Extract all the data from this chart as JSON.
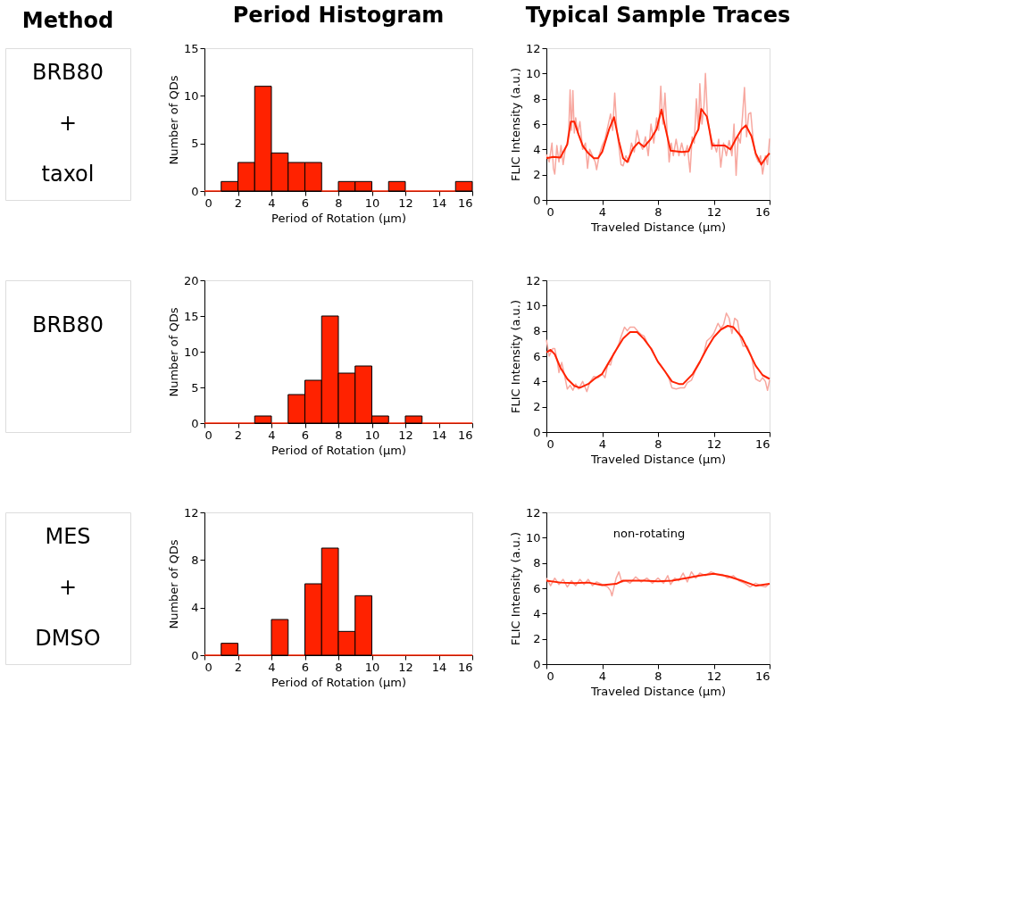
{
  "chart_data": [
    {
      "type": "other",
      "title": "Method",
      "annotations": [
        "BRB80",
        "+",
        "taxol"
      ]
    },
    {
      "type": "histogram",
      "title": "Period Histogram",
      "xlabel": "Period of Rotation (μm)",
      "ylabel": "Number of QDs",
      "bins": [
        0,
        1,
        2,
        3,
        4,
        5,
        6,
        7,
        8,
        9,
        10,
        11,
        12,
        13,
        14,
        15,
        16
      ],
      "values": [
        0,
        1,
        3,
        11,
        4,
        3,
        3,
        0,
        1,
        1,
        0,
        1,
        0,
        0,
        0,
        1
      ],
      "color": "#ff2200",
      "xlim": [
        0,
        16
      ],
      "xticks": [
        0,
        2,
        4,
        6,
        8,
        10,
        12,
        14,
        16
      ],
      "ylim": [
        0,
        15
      ],
      "yticks": [
        0,
        5,
        10,
        15
      ],
      "grid": false
    },
    {
      "type": "line",
      "title": "Typical Sample Traces",
      "xlabel": "Traveled Distance (μm)",
      "ylabel": "FLIC Intensity (a.u.)",
      "xlim": [
        0,
        16
      ],
      "xticks": [
        0,
        4,
        8,
        12,
        16
      ],
      "ylim": [
        0,
        12
      ],
      "yticks": [
        0,
        2,
        4,
        6,
        8,
        10,
        12
      ],
      "grid": false,
      "series": [
        {
          "color": "#f7a8a0",
          "x": [
            0,
            0.2,
            0.4,
            0.5,
            0.6,
            0.75,
            0.9,
            1.05,
            1.2,
            1.35,
            1.5,
            1.6,
            1.7,
            1.8,
            1.9,
            2.0,
            2.1,
            2.25,
            2.4,
            2.6,
            2.8,
            2.95,
            3.1,
            3.3,
            3.5,
            3.6,
            3.8,
            4.0,
            4.2,
            4.4,
            4.6,
            4.75,
            4.9,
            5.05,
            5.2,
            5.35,
            5.5,
            5.7,
            5.9,
            6.1,
            6.3,
            6.5,
            6.7,
            6.9,
            7.1,
            7.3,
            7.5,
            7.7,
            7.9,
            8.05,
            8.2,
            8.35,
            8.5,
            8.65,
            8.8,
            8.95,
            9.1,
            9.3,
            9.5,
            9.7,
            9.9,
            10.1,
            10.3,
            10.45,
            10.6,
            10.75,
            10.9,
            11.0,
            11.15,
            11.3,
            11.4,
            11.55,
            11.7,
            11.85,
            12.0,
            12.2,
            12.35,
            12.5,
            12.7,
            12.9,
            13.1,
            13.3,
            13.45,
            13.6,
            13.75,
            13.9,
            14.05,
            14.2,
            14.35,
            14.5,
            14.65,
            14.8,
            15.0,
            15.2,
            15.35,
            15.5,
            15.7,
            15.85,
            16
          ],
          "values": [
            3.6,
            3.0,
            4.5,
            2.5,
            2.05,
            4.3,
            3.0,
            4.3,
            2.8,
            4.0,
            4.5,
            5.5,
            8.7,
            5.5,
            8.65,
            5.3,
            6.5,
            5.3,
            6.2,
            4.0,
            4.5,
            2.5,
            4.0,
            3.5,
            3.0,
            2.4,
            3.6,
            4.3,
            4.8,
            5.8,
            6.8,
            5.5,
            8.45,
            5.5,
            4.2,
            2.8,
            2.7,
            3.5,
            3.0,
            4.5,
            3.8,
            5.5,
            4.5,
            4.0,
            5.0,
            3.5,
            6.0,
            4.5,
            6.5,
            5.5,
            9.0,
            6.0,
            8.45,
            5.5,
            3.0,
            4.5,
            3.5,
            4.8,
            3.5,
            4.5,
            3.5,
            4.3,
            2.2,
            5.0,
            4.5,
            8.0,
            5.5,
            9.2,
            6.0,
            7.5,
            10.0,
            6.5,
            5.5,
            4.0,
            4.5,
            3.8,
            4.8,
            2.6,
            4.5,
            3.5,
            4.7,
            3.5,
            6.0,
            1.95,
            5.0,
            4.5,
            6.5,
            8.9,
            5.0,
            6.8,
            6.9,
            5.0,
            3.5,
            3.0,
            3.5,
            2.05,
            3.5,
            2.8,
            4.85
          ]
        },
        {
          "color": "#ff2200",
          "x": [
            0,
            0.5,
            1.0,
            1.5,
            1.75,
            2.0,
            2.3,
            2.6,
            3.0,
            3.4,
            3.7,
            4.0,
            4.5,
            4.85,
            5.2,
            5.5,
            5.8,
            6.2,
            6.6,
            7.0,
            7.5,
            7.9,
            8.25,
            8.5,
            8.9,
            9.3,
            9.7,
            10.2,
            10.5,
            10.9,
            11.1,
            11.5,
            11.9,
            12.3,
            12.8,
            13.2,
            13.6,
            14.0,
            14.3,
            14.7,
            15.0,
            15.4,
            15.7,
            16
          ],
          "values": [
            3.3,
            3.4,
            3.35,
            4.4,
            6.2,
            6.2,
            5.2,
            4.3,
            3.7,
            3.3,
            3.3,
            3.8,
            5.6,
            6.55,
            4.65,
            3.3,
            3.0,
            4.05,
            4.55,
            4.2,
            4.85,
            5.6,
            7.15,
            5.85,
            3.9,
            3.85,
            3.8,
            3.85,
            4.7,
            5.6,
            7.2,
            6.6,
            4.3,
            4.3,
            4.3,
            4.0,
            4.85,
            5.6,
            5.9,
            5.05,
            3.7,
            2.8,
            3.3,
            3.7
          ]
        }
      ]
    },
    {
      "type": "other",
      "annotations": [
        "BRB80"
      ]
    },
    {
      "type": "histogram",
      "xlabel": "Period of Rotation (μm)",
      "ylabel": "Number of QDs",
      "bins": [
        0,
        1,
        2,
        3,
        4,
        5,
        6,
        7,
        8,
        9,
        10,
        11,
        12,
        13,
        14,
        15,
        16
      ],
      "values": [
        0,
        0,
        0,
        1,
        0,
        4,
        6,
        15,
        7,
        8,
        1,
        0,
        1,
        0,
        0,
        0
      ],
      "color": "#ff2200",
      "xlim": [
        0,
        16
      ],
      "xticks": [
        0,
        2,
        4,
        6,
        8,
        10,
        12,
        14,
        16
      ],
      "ylim": [
        0,
        20
      ],
      "yticks": [
        0,
        5,
        10,
        15,
        20
      ],
      "grid": false
    },
    {
      "type": "line",
      "xlabel": "Traveled Distance (μm)",
      "ylabel": "FLIC Intensity (a.u.)",
      "xlim": [
        0,
        16
      ],
      "xticks": [
        0,
        4,
        8,
        12,
        16
      ],
      "ylim": [
        0,
        12
      ],
      "yticks": [
        0,
        2,
        4,
        6,
        8,
        10,
        12
      ],
      "grid": false,
      "series": [
        {
          "color": "#f7a8a0",
          "x": [
            0,
            0.2,
            0.45,
            0.6,
            0.8,
            0.9,
            1.1,
            1.3,
            1.5,
            1.7,
            1.9,
            2.1,
            2.3,
            2.6,
            2.9,
            3.1,
            3.4,
            3.7,
            4.0,
            4.2,
            4.4,
            4.6,
            4.8,
            5.0,
            5.2,
            5.4,
            5.6,
            5.8,
            6.0,
            6.3,
            6.6,
            6.8,
            7.0,
            7.3,
            7.6,
            7.9,
            8.2,
            8.5,
            8.8,
            9.0,
            9.3,
            9.6,
            9.9,
            10.1,
            10.4,
            10.7,
            11.0,
            11.3,
            11.5,
            11.8,
            12.0,
            12.3,
            12.5,
            12.7,
            12.9,
            13.1,
            13.3,
            13.5,
            13.7,
            13.9,
            14.1,
            14.4,
            14.7,
            15.0,
            15.3,
            15.5,
            15.7,
            15.85,
            16
          ],
          "values": [
            7.3,
            6.0,
            6.6,
            6.6,
            5.5,
            4.7,
            5.5,
            4.5,
            3.4,
            3.7,
            3.3,
            3.8,
            3.4,
            4.0,
            3.2,
            3.9,
            4.4,
            4.3,
            4.6,
            4.3,
            5.4,
            5.3,
            6.2,
            6.5,
            7.0,
            7.7,
            8.3,
            8.0,
            8.3,
            8.3,
            7.9,
            7.7,
            7.6,
            6.9,
            6.5,
            5.7,
            5.3,
            4.8,
            4.2,
            3.5,
            3.4,
            3.5,
            3.5,
            3.9,
            4.1,
            4.9,
            5.5,
            6.3,
            7.2,
            7.5,
            7.8,
            8.6,
            8.2,
            8.5,
            9.4,
            9.0,
            7.8,
            9.0,
            8.8,
            7.5,
            6.8,
            6.8,
            6.0,
            4.2,
            4.0,
            4.3,
            4.0,
            3.3,
            4.1
          ]
        },
        {
          "color": "#ff2200",
          "x": [
            0,
            0.3,
            0.6,
            1.0,
            1.5,
            2.0,
            2.4,
            3.0,
            3.5,
            4.0,
            4.5,
            5.0,
            5.5,
            6.0,
            6.5,
            7.0,
            7.5,
            8.0,
            8.5,
            9.0,
            9.5,
            9.8,
            10.5,
            11.0,
            11.5,
            12.0,
            12.5,
            13.0,
            13.4,
            14.0,
            14.5,
            15.0,
            15.5,
            16
          ],
          "values": [
            6.3,
            6.5,
            6.15,
            5.1,
            4.2,
            3.65,
            3.5,
            3.8,
            4.25,
            4.6,
            5.55,
            6.5,
            7.4,
            7.9,
            7.9,
            7.35,
            6.6,
            5.55,
            4.8,
            4.0,
            3.8,
            3.8,
            4.6,
            5.55,
            6.6,
            7.5,
            8.1,
            8.4,
            8.3,
            7.5,
            6.4,
            5.25,
            4.5,
            4.2
          ]
        }
      ]
    },
    {
      "type": "other",
      "annotations": [
        "MES",
        "+",
        "DMSO"
      ]
    },
    {
      "type": "histogram",
      "xlabel": "Period of Rotation (μm)",
      "ylabel": "Number of QDs",
      "bins": [
        0,
        1,
        2,
        3,
        4,
        5,
        6,
        7,
        8,
        9,
        10,
        11,
        12,
        13,
        14,
        15,
        16
      ],
      "values": [
        0,
        1,
        0,
        0,
        3,
        0,
        6,
        9,
        2,
        5,
        0,
        0,
        0,
        0,
        0,
        0
      ],
      "color": "#ff2200",
      "xlim": [
        0,
        16
      ],
      "xticks": [
        0,
        2,
        4,
        6,
        8,
        10,
        12,
        14,
        16
      ],
      "ylim": [
        0,
        12
      ],
      "yticks": [
        0,
        4,
        8,
        12
      ],
      "grid": false
    },
    {
      "type": "line",
      "xlabel": "Traveled Distance (μm)",
      "ylabel": "FLIC Intensity (a.u.)",
      "annotations": [
        "non-rotating"
      ],
      "xlim": [
        0,
        16
      ],
      "xticks": [
        0,
        4,
        8,
        12,
        16
      ],
      "ylim": [
        0,
        12
      ],
      "yticks": [
        0,
        2,
        4,
        6,
        8,
        10,
        12
      ],
      "grid": false,
      "series": [
        {
          "color": "#f7a8a0",
          "x": [
            0,
            0.3,
            0.6,
            0.9,
            1.2,
            1.5,
            1.8,
            2.1,
            2.4,
            2.7,
            3.0,
            3.3,
            3.6,
            4.0,
            4.4,
            4.6,
            4.7,
            5.0,
            5.2,
            5.4,
            5.7,
            6.0,
            6.4,
            6.8,
            7.2,
            7.6,
            8.0,
            8.4,
            8.7,
            8.9,
            9.2,
            9.5,
            9.8,
            10.1,
            10.4,
            10.7,
            11.0,
            11.4,
            11.8,
            12.2,
            12.6,
            13.0,
            13.4,
            13.8,
            14.2,
            14.6,
            15.0,
            15.4,
            15.7,
            16
          ],
          "values": [
            6.8,
            6.2,
            6.8,
            6.3,
            6.7,
            6.1,
            6.6,
            6.2,
            6.7,
            6.3,
            6.7,
            6.2,
            6.5,
            6.3,
            6.1,
            5.8,
            5.4,
            6.8,
            7.3,
            6.5,
            6.6,
            6.4,
            6.9,
            6.5,
            6.8,
            6.4,
            6.8,
            6.4,
            7.0,
            6.3,
            6.8,
            6.6,
            7.2,
            6.5,
            7.3,
            6.8,
            7.2,
            7.0,
            7.3,
            7.1,
            7.1,
            6.8,
            7.0,
            6.6,
            6.4,
            6.1,
            6.4,
            6.2,
            6.1,
            6.4
          ]
        },
        {
          "color": "#ff2200",
          "x": [
            0,
            1,
            2,
            3,
            4,
            5,
            5.5,
            6,
            7,
            8,
            9,
            10,
            11,
            12,
            13,
            14,
            15,
            16
          ],
          "values": [
            6.6,
            6.45,
            6.4,
            6.45,
            6.25,
            6.35,
            6.6,
            6.6,
            6.6,
            6.55,
            6.6,
            6.8,
            7.0,
            7.15,
            6.95,
            6.6,
            6.2,
            6.35
          ]
        }
      ]
    }
  ]
}
